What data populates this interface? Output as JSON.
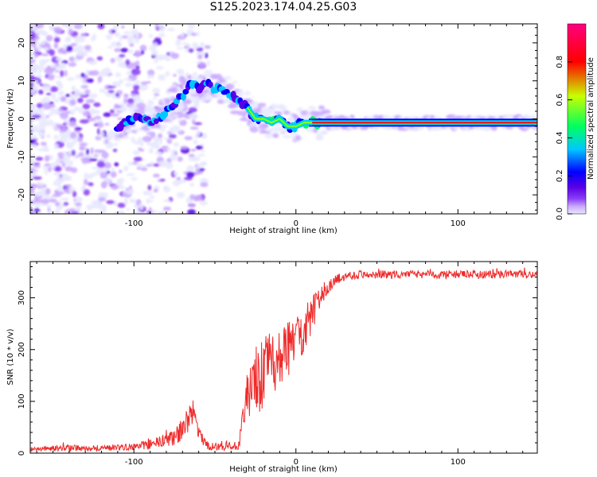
{
  "title": "S125.2023.174.04.25.G03",
  "colors": {
    "snr_line": "#ee2b2b",
    "colormap": [
      "#e8e8ff",
      "#c9a8ff",
      "#8a3df5",
      "#5a00e6",
      "#0000ff",
      "#00c8ff",
      "#00ff60",
      "#c8ff00",
      "#ff0000",
      "#ff0080"
    ]
  },
  "chart_data": [
    {
      "type": "heatmap",
      "xlabel": "Height of straight line (km)",
      "ylabel": "Frequency (Hz)",
      "xlim": [
        -164,
        149
      ],
      "ylim": [
        -25,
        25
      ],
      "x_ticks": [
        -100,
        0,
        100
      ],
      "y_ticks": [
        -20,
        -10,
        0,
        10,
        20
      ],
      "ridge": {
        "x": [
          -110,
          -100,
          -95,
          -90,
          -85,
          -80,
          -75,
          -70,
          -65,
          -60,
          -55,
          -50,
          -45,
          -40,
          -35,
          -30,
          -25,
          -20,
          -15,
          -10,
          -5,
          0,
          5,
          10,
          20,
          40,
          60,
          80,
          100,
          120,
          149
        ],
        "y": [
          -2,
          0,
          0,
          -1,
          0,
          2,
          4,
          6,
          9,
          8,
          9,
          8,
          8,
          6,
          5,
          3,
          0,
          0,
          -1,
          0,
          -2,
          -2,
          -1,
          -1,
          -1,
          -1,
          -1,
          -1,
          -1,
          -1,
          -1
        ]
      },
      "colorbar": {
        "label": "Normalized spectral amplitude",
        "range": [
          0,
          1
        ],
        "ticks": [
          "0.0",
          "0.2",
          "0.4",
          "0.6",
          "0.8"
        ]
      },
      "grid": false
    },
    {
      "type": "line",
      "xlabel": "Height of straight line (km)",
      "ylabel": "SNR (10 * v/v)",
      "xlim": [
        -164,
        149
      ],
      "ylim": [
        0,
        370
      ],
      "x_ticks": [
        -100,
        0,
        100
      ],
      "y_ticks": [
        0,
        100,
        200,
        300
      ],
      "series": [
        {
          "x": [
            -164,
            -140,
            -120,
            -100,
            -85,
            -75,
            -68,
            -63,
            -60,
            -55,
            -50,
            -40,
            -35,
            -32,
            -30,
            -25,
            -20,
            -15,
            -10,
            -5,
            0,
            5,
            10,
            15,
            20,
            25,
            30,
            40,
            60,
            80,
            100,
            120,
            149
          ],
          "y": [
            8,
            10,
            10,
            12,
            20,
            30,
            55,
            80,
            40,
            15,
            12,
            15,
            20,
            70,
            110,
            135,
            150,
            175,
            185,
            200,
            220,
            240,
            265,
            300,
            320,
            335,
            342,
            345,
            345,
            345,
            345,
            345,
            345
          ],
          "noise": [
            4,
            6,
            6,
            6,
            12,
            15,
            25,
            25,
            15,
            8,
            8,
            10,
            15,
            40,
            60,
            70,
            70,
            65,
            60,
            55,
            50,
            45,
            40,
            20,
            12,
            10,
            9,
            8,
            8,
            8,
            8,
            8,
            8
          ]
        }
      ],
      "grid": false
    }
  ]
}
